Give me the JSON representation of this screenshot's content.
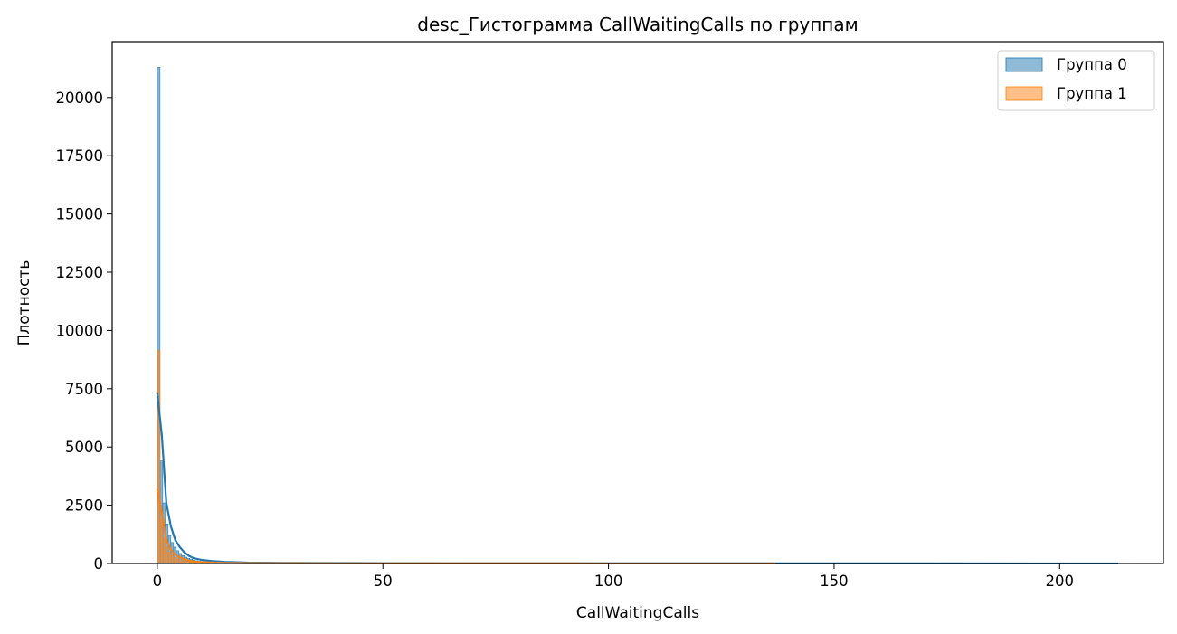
{
  "chart_data": {
    "type": "histogram",
    "title": "desc_Гистограмма CallWaitingCalls по группам",
    "xlabel": "CallWaitingCalls",
    "ylabel": "Плотность",
    "xlim": [
      -10,
      223
    ],
    "ylim": [
      0,
      22400
    ],
    "x_ticks": [
      0,
      50,
      100,
      150,
      200
    ],
    "x_tick_labels": [
      "0",
      "50",
      "100",
      "150",
      "200"
    ],
    "y_ticks": [
      0,
      2500,
      5000,
      7500,
      10000,
      12500,
      15000,
      17500,
      20000
    ],
    "y_tick_labels": [
      "0",
      "2500",
      "5000",
      "7500",
      "10000",
      "12500",
      "15000",
      "17500",
      "20000"
    ],
    "grid": false,
    "legend_position": "top-right",
    "bin_width": 0.6,
    "series": [
      {
        "name": "Группа 0",
        "color": "#1f77b4",
        "bars": [
          [
            0,
            21300
          ],
          [
            0.6,
            4400
          ],
          [
            1.2,
            2600
          ],
          [
            1.8,
            1700
          ],
          [
            2.4,
            1200
          ],
          [
            3.0,
            900
          ],
          [
            3.6,
            700
          ],
          [
            4.2,
            550
          ],
          [
            4.8,
            430
          ],
          [
            5.4,
            340
          ],
          [
            6.0,
            270
          ],
          [
            6.6,
            220
          ],
          [
            7.2,
            180
          ],
          [
            7.8,
            150
          ],
          [
            8.4,
            120
          ],
          [
            9.0,
            100
          ],
          [
            9.6,
            80
          ],
          [
            10.2,
            65
          ],
          [
            10.8,
            50
          ],
          [
            11.4,
            40
          ]
        ],
        "kde": [
          [
            0,
            7300
          ],
          [
            1,
            5500
          ],
          [
            2,
            2600
          ],
          [
            3,
            1600
          ],
          [
            4,
            1000
          ],
          [
            5,
            700
          ],
          [
            6,
            480
          ],
          [
            7,
            330
          ],
          [
            8,
            230
          ],
          [
            10,
            150
          ],
          [
            12,
            110
          ],
          [
            15,
            70
          ],
          [
            20,
            40
          ],
          [
            30,
            25
          ],
          [
            50,
            15
          ],
          [
            100,
            8
          ],
          [
            150,
            5
          ],
          [
            200,
            3
          ],
          [
            213,
            2
          ]
        ]
      },
      {
        "name": "Группа 1",
        "color": "#ff7f0e",
        "bars": [
          [
            0,
            9150
          ],
          [
            0.6,
            1900
          ],
          [
            1.2,
            1100
          ],
          [
            1.8,
            700
          ],
          [
            2.4,
            480
          ],
          [
            3.0,
            350
          ],
          [
            3.6,
            260
          ],
          [
            4.2,
            200
          ],
          [
            4.8,
            150
          ],
          [
            5.4,
            110
          ],
          [
            6.0,
            85
          ],
          [
            6.6,
            65
          ],
          [
            7.2,
            50
          ],
          [
            7.8,
            40
          ],
          [
            8.4,
            30
          ]
        ],
        "kde": [
          [
            0,
            3200
          ],
          [
            1,
            2200
          ],
          [
            2,
            1000
          ],
          [
            3,
            600
          ],
          [
            4,
            380
          ],
          [
            5,
            260
          ],
          [
            6,
            180
          ],
          [
            7,
            120
          ],
          [
            8,
            85
          ],
          [
            10,
            55
          ],
          [
            15,
            25
          ],
          [
            20,
            15
          ],
          [
            30,
            10
          ],
          [
            50,
            6
          ],
          [
            100,
            3
          ],
          [
            137,
            2
          ]
        ]
      }
    ]
  }
}
